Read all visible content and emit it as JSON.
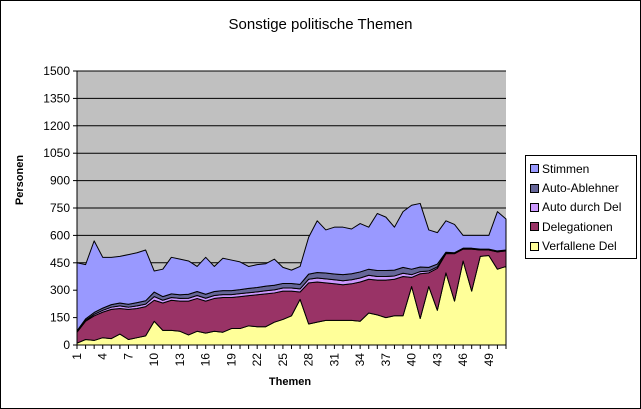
{
  "chart_data": {
    "type": "area",
    "stacked": true,
    "title": "Sonstige politische Themen",
    "xlabel": "Themen",
    "ylabel": "Personen",
    "ylim": [
      0,
      1500
    ],
    "yticks": [
      0,
      150,
      300,
      450,
      600,
      750,
      900,
      1050,
      1200,
      1350,
      1500
    ],
    "xtick_labels": [
      "1",
      "4",
      "7",
      "10",
      "13",
      "16",
      "19",
      "22",
      "25",
      "28",
      "31",
      "34",
      "37",
      "40",
      "43",
      "46",
      "49"
    ],
    "x": [
      1,
      2,
      3,
      4,
      5,
      6,
      7,
      8,
      9,
      10,
      11,
      12,
      13,
      14,
      15,
      16,
      17,
      18,
      19,
      20,
      21,
      22,
      23,
      24,
      25,
      26,
      27,
      28,
      29,
      30,
      31,
      32,
      33,
      34,
      35,
      36,
      37,
      38,
      39,
      40,
      41,
      42,
      43,
      44,
      45,
      46,
      47,
      48,
      49,
      50,
      51
    ],
    "grid": true,
    "legend_position": "right",
    "plot_background": "#c0c0c0",
    "series": [
      {
        "name": "Verfallene Del",
        "color": "#ffff99",
        "values": [
          10,
          30,
          25,
          40,
          35,
          60,
          30,
          40,
          50,
          130,
          80,
          80,
          75,
          55,
          75,
          65,
          75,
          70,
          90,
          90,
          105,
          100,
          100,
          125,
          140,
          160,
          250,
          115,
          125,
          135,
          135,
          135,
          135,
          130,
          175,
          165,
          150,
          160,
          160,
          320,
          145,
          320,
          190,
          395,
          240,
          460,
          295,
          485,
          490,
          415,
          430
        ]
      },
      {
        "name": "Delegationen",
        "color": "#993366",
        "values": [
          60,
          100,
          135,
          140,
          160,
          140,
          165,
          160,
          160,
          115,
          150,
          165,
          165,
          185,
          180,
          175,
          180,
          190,
          170,
          175,
          165,
          175,
          180,
          160,
          155,
          135,
          40,
          225,
          220,
          205,
          200,
          195,
          200,
          215,
          185,
          190,
          205,
          200,
          215,
          50,
          245,
          75,
          230,
          105,
          260,
          65,
          230,
          35,
          30,
          95,
          85
        ]
      },
      {
        "name": "Auto durch Del",
        "color": "#cc99ff",
        "values": [
          3,
          5,
          8,
          10,
          12,
          14,
          12,
          14,
          14,
          20,
          15,
          15,
          15,
          16,
          16,
          16,
          16,
          16,
          16,
          16,
          16,
          16,
          17,
          17,
          17,
          17,
          17,
          20,
          22,
          22,
          22,
          22,
          22,
          22,
          22,
          20,
          20,
          18,
          18,
          15,
          12,
          10,
          8,
          3,
          2,
          2,
          2,
          2,
          2,
          2,
          2
        ]
      },
      {
        "name": "Auto-Ablehner",
        "color": "#666699",
        "values": [
          5,
          8,
          10,
          12,
          14,
          16,
          16,
          18,
          18,
          25,
          20,
          20,
          20,
          22,
          22,
          22,
          22,
          22,
          22,
          22,
          24,
          24,
          25,
          25,
          25,
          25,
          25,
          28,
          30,
          32,
          32,
          33,
          33,
          33,
          33,
          33,
          33,
          32,
          32,
          30,
          25,
          20,
          15,
          5,
          3,
          3,
          3,
          3,
          3,
          3,
          3
        ]
      },
      {
        "name": "Stimmen",
        "color": "#9999ff",
        "values": [
          372,
          297,
          392,
          278,
          259,
          255,
          272,
          273,
          278,
          115,
          150,
          200,
          195,
          182,
          137,
          202,
          137,
          177,
          167,
          152,
          120,
          125,
          123,
          143,
          88,
          73,
          98,
          202,
          283,
          236,
          256,
          260,
          245,
          265,
          230,
          312,
          292,
          235,
          305,
          350,
          348,
          205,
          172,
          172,
          155,
          70,
          70,
          75,
          75,
          215,
          170
        ]
      }
    ]
  },
  "legend": {
    "items": [
      {
        "label": "Stimmen",
        "color": "#9999ff"
      },
      {
        "label": "Auto-Ablehner",
        "color": "#666699"
      },
      {
        "label": "Auto durch Del",
        "color": "#cc99ff"
      },
      {
        "label": "Delegationen",
        "color": "#993366"
      },
      {
        "label": "Verfallene Del",
        "color": "#ffff99"
      }
    ]
  }
}
